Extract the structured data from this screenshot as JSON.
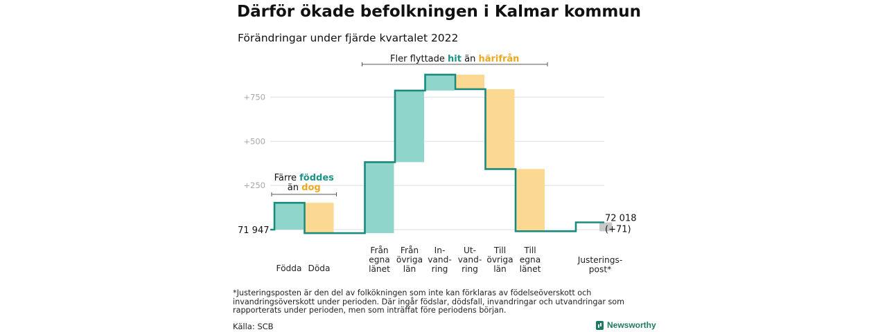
{
  "title": "Därför ökade befolkningen i Kalmar kommun",
  "subtitle": "Förändringar under fjärde kvartalet 2022",
  "chart_data": {
    "type": "waterfall",
    "start_value": 71947,
    "end_value": 72018,
    "start_label": "71 947",
    "end_label_line1": "72 018",
    "end_label_line2": "(+71)",
    "ylim": [
      -30,
      900
    ],
    "y_ticks": [
      {
        "value": 250,
        "label": "+250"
      },
      {
        "value": 500,
        "label": "+500"
      },
      {
        "value": 750,
        "label": "+750"
      }
    ],
    "steps": [
      {
        "label_lines": [
          "Födda"
        ],
        "change": 152,
        "kind": "in"
      },
      {
        "label_lines": [
          "Döda"
        ],
        "change": -172,
        "kind": "out"
      },
      {
        "label_lines": [
          "",
          ""
        ],
        "change": 0,
        "kind": "gap"
      },
      {
        "label_lines": [
          "Från",
          "egna",
          "länet"
        ],
        "change": 402,
        "kind": "in"
      },
      {
        "label_lines": [
          "Från",
          "övriga",
          "län"
        ],
        "change": 405,
        "kind": "in"
      },
      {
        "label_lines": [
          "In-",
          "vand-",
          "ring"
        ],
        "change": 90,
        "kind": "in"
      },
      {
        "label_lines": [
          "Ut-",
          "vand-",
          "ring"
        ],
        "change": -82,
        "kind": "out"
      },
      {
        "label_lines": [
          "Till",
          "övriga",
          "län"
        ],
        "change": -452,
        "kind": "out"
      },
      {
        "label_lines": [
          "Till",
          "egna",
          "länet"
        ],
        "change": -352,
        "kind": "out"
      },
      {
        "label_lines": [
          "",
          ""
        ],
        "change": 0,
        "kind": "gap"
      },
      {
        "label_lines": [
          "Justerings-",
          "post*"
        ],
        "change": 50,
        "kind": "adjustment"
      }
    ],
    "group_annotations": [
      {
        "prefix": "Fler flyttade ",
        "in_word": "hit",
        "middle": " än ",
        "out_word": "härifrån",
        "from_step": 3,
        "to_step": 8
      },
      {
        "line1_prefix": "Färre ",
        "in_word": "föddes",
        "line2_prefix": "än ",
        "out_word": "dog",
        "from_step": 0,
        "to_step": 1
      }
    ],
    "colors": {
      "in_fill": "#8fd5cb",
      "out_fill": "#fcd993",
      "adjustment_fill": "#c8c8c8",
      "line": "#1a8a7c",
      "in_text": "#1a9484",
      "out_text": "#eea820",
      "grid": "#dedede",
      "tick_text": "#a8a8a8"
    }
  },
  "footnote": "*Justeringsposten är den del av folkökningen som inte kan förklaras av födelseöverskott och invandringsöverskott under perioden. Där ingår födslar, dödsfall, invandringar och utvandringar som rapporterats under perioden, men som inträffat före periodens början.",
  "source": "Källa: SCB",
  "brand": {
    "name": "Newsworthy",
    "icon": "newsworthy-logo-icon"
  }
}
